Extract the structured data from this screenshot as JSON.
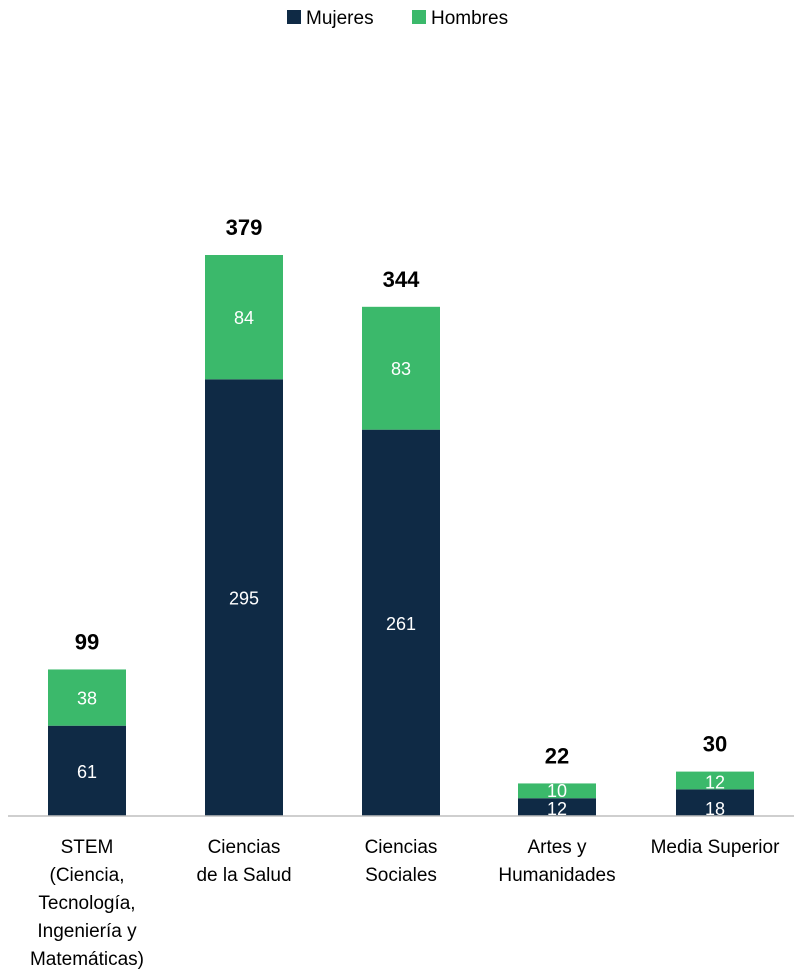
{
  "chart_data": {
    "type": "bar",
    "stacked": true,
    "categories": [
      [
        "STEM",
        "(Ciencia,",
        "Tecnología,",
        "Ingeniería y",
        "Matemáticas)"
      ],
      [
        "Ciencias",
        "de la Salud"
      ],
      [
        "Ciencias",
        "Sociales"
      ],
      [
        "Artes y",
        "Humanidades"
      ],
      [
        "Media Superior"
      ]
    ],
    "series": [
      {
        "name": "Mujeres",
        "color": "#0f2a45",
        "values": [
          61,
          295,
          261,
          12,
          18
        ]
      },
      {
        "name": "Hombres",
        "color": "#3bb96b",
        "values": [
          38,
          84,
          83,
          10,
          12
        ]
      }
    ],
    "totals": [
      99,
      379,
      344,
      22,
      30
    ],
    "legend_position": "top-center",
    "grid": false,
    "ylim": [
      0,
      379
    ]
  }
}
